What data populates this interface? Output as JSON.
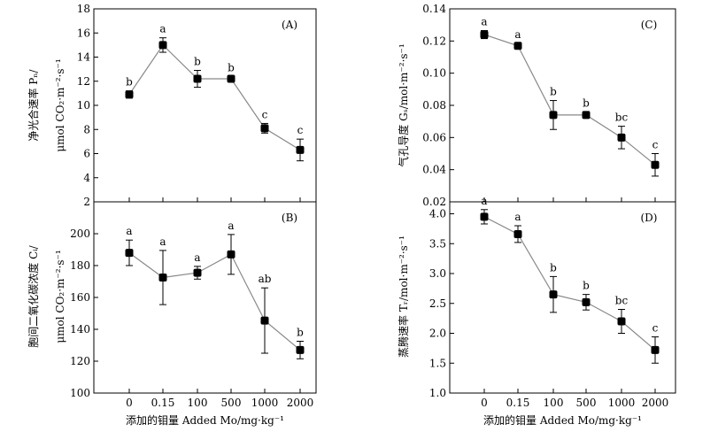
{
  "x_axis": {
    "categories": [
      "0",
      "0.15",
      "100",
      "500",
      "1000",
      "2000"
    ],
    "label": "添加的钼量 Added Mo/mg·kg⁻¹"
  },
  "chart_data": [
    {
      "type": "line",
      "panel": "(A)",
      "ylabel_cn": "净光合速率 Pₙ/",
      "ylabel_unit": "μmol CO₂·m⁻²·s⁻¹",
      "ylim": [
        2,
        18
      ],
      "yticks": [
        "2",
        "4",
        "6",
        "8",
        "10",
        "12",
        "14",
        "16",
        "18"
      ],
      "categories": [
        "0",
        "0.15",
        "100",
        "500",
        "1000",
        "2000"
      ],
      "values": [
        10.9,
        15.0,
        12.2,
        12.2,
        8.1,
        6.3
      ],
      "errors": [
        0.3,
        0.6,
        0.7,
        0.2,
        0.4,
        0.9
      ],
      "labels": [
        "b",
        "a",
        "b",
        "b",
        "c",
        "c"
      ]
    },
    {
      "type": "line",
      "panel": "(B)",
      "ylabel_cn": "胞间二氧化碳浓度 Cᵢ/",
      "ylabel_unit": "μmol CO₂·m⁻²·s⁻¹",
      "ylim": [
        100,
        220
      ],
      "yticks": [
        "100",
        "120",
        "140",
        "160",
        "180",
        "200"
      ],
      "categories": [
        "0",
        "0.15",
        "100",
        "500",
        "1000",
        "2000"
      ],
      "values": [
        188,
        172.5,
        175.5,
        187,
        145.5,
        127
      ],
      "errors": [
        8,
        17,
        4,
        12.5,
        20.5,
        5.5
      ],
      "labels": [
        "a",
        "a",
        "a",
        "a",
        "ab",
        "b"
      ]
    },
    {
      "type": "line",
      "panel": "(C)",
      "ylabel_cn": "气孔导度 Gₛ/mol·m⁻²·s⁻¹",
      "ylabel_unit": "",
      "ylim": [
        0.02,
        0.14
      ],
      "yticks": [
        "0.02",
        "0.04",
        "0.06",
        "0.08",
        "0.10",
        "0.12",
        "0.14"
      ],
      "categories": [
        "0",
        "0.15",
        "100",
        "500",
        "1000",
        "2000"
      ],
      "values": [
        0.124,
        0.117,
        0.074,
        0.074,
        0.06,
        0.043
      ],
      "errors": [
        0.0025,
        0.0015,
        0.009,
        0.002,
        0.007,
        0.007
      ],
      "labels": [
        "a",
        "a",
        "b",
        "b",
        "bc",
        "c"
      ]
    },
    {
      "type": "line",
      "panel": "(D)",
      "ylabel_cn": "蒸腾速率 Tᵣ/mol·m⁻²·s⁻¹",
      "ylabel_unit": "",
      "ylim": [
        1.0,
        4.2
      ],
      "yticks": [
        "1.0",
        "1.5",
        "2.0",
        "2.5",
        "3.0",
        "3.5",
        "4.0"
      ],
      "categories": [
        "0",
        "0.15",
        "100",
        "500",
        "1000",
        "2000"
      ],
      "values": [
        3.95,
        3.66,
        2.65,
        2.52,
        2.2,
        1.72
      ],
      "errors": [
        0.12,
        0.14,
        0.3,
        0.13,
        0.2,
        0.22
      ],
      "labels": [
        "a",
        "a",
        "b",
        "b",
        "bc",
        "c"
      ]
    }
  ],
  "colors": {
    "line": "#888888",
    "marker": "#000000",
    "axis": "#000000"
  }
}
